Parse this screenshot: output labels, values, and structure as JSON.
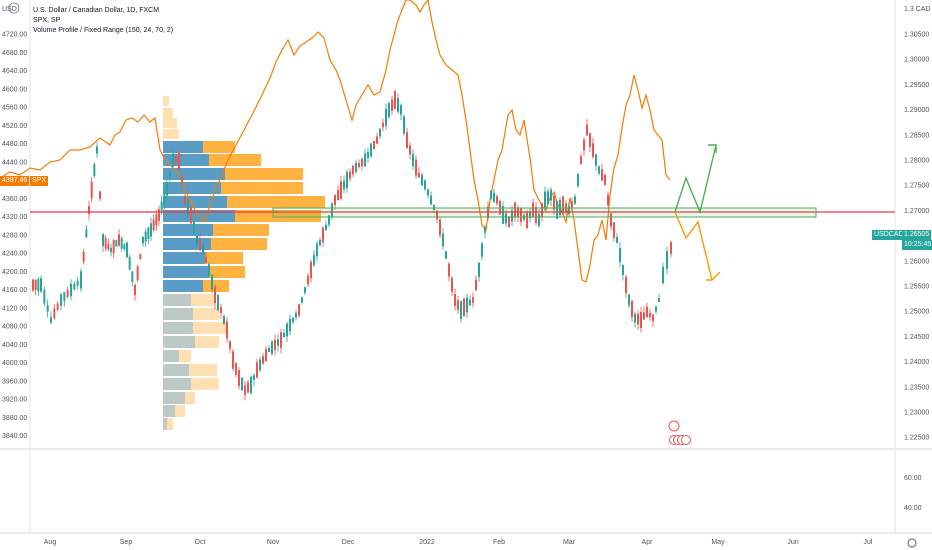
{
  "legend": {
    "symbol": "U.S. Dollar / Canadian Dollar, 1D, FXCM",
    "compare": "SPX, SP",
    "indicator": "Volume Profile / Fixed Range (150, 24, 70, 2)"
  },
  "left_axis": {
    "title": "USD",
    "ticks": [
      "4720.00",
      "4680.00",
      "4640.00",
      "4600.00",
      "4560.00",
      "4520.00",
      "4480.00",
      "4440.00",
      "4400.00",
      "4360.00",
      "4320.00",
      "4280.00",
      "4240.00",
      "4200.00",
      "4160.00",
      "4120.00",
      "4080.00",
      "4040.00",
      "4000.00",
      "3960.00",
      "3920.00",
      "3880.00",
      "3840.00"
    ],
    "price_label": "4397.46",
    "price_label_name": "SPX"
  },
  "right_axis": {
    "title": "CAD",
    "ticks": [
      "1.30500",
      "1.30000",
      "1.29500",
      "1.29000",
      "1.28500",
      "1.28000",
      "1.27500",
      "1.27000",
      "1.26500",
      "1.26000",
      "1.25500",
      "1.25000",
      "1.24500",
      "1.24000",
      "1.23500",
      "1.23000",
      "1.22500"
    ],
    "top_tick": "1.3",
    "last_price_name": "USDCAD",
    "last_price": "1.26505",
    "countdown": "10:25:45"
  },
  "volume_pane": {
    "ticks": [
      "60.00",
      "40.00"
    ]
  },
  "time_axis": {
    "labels": [
      "Aug",
      "Sep",
      "Oct",
      "Nov",
      "Dec",
      "2022",
      "Feb",
      "Mar",
      "Apr",
      "May",
      "Jun",
      "Jul"
    ]
  },
  "colors": {
    "up": "#26a69a",
    "down": "#ef5350",
    "spx": "#f57c00",
    "vp_blue": "#2196f3",
    "vp_orange": "#ff9800",
    "level": "#f23645",
    "zone": "#4caf50"
  },
  "icons": {
    "symbol_logo": "usd-icon",
    "events": "canada-flag-icon",
    "settings": "gear-icon"
  }
}
